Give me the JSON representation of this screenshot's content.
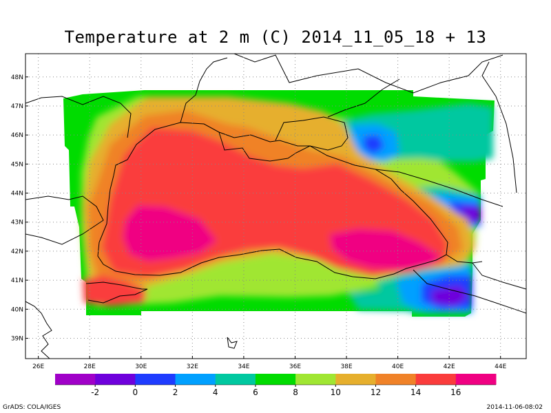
{
  "title": "Temperature at 2 m (C) 2014_11_05_18 + 13",
  "credit": "GrADS: COLA/IGES",
  "timestamp": "2014-11-06-08:02",
  "map": {
    "lon_range": [
      25.5,
      45.0
    ],
    "lat_range": [
      38.3,
      48.8
    ],
    "lon_ticks": [
      26,
      28,
      30,
      32,
      34,
      36,
      38,
      40,
      42,
      44
    ],
    "lon_tick_labels": [
      "26E",
      "28E",
      "30E",
      "32E",
      "34E",
      "36E",
      "38E",
      "40E",
      "42E",
      "44E"
    ],
    "lat_ticks": [
      39,
      40,
      41,
      42,
      43,
      44,
      45,
      46,
      47,
      48
    ],
    "lat_tick_labels": [
      "39N",
      "40N",
      "41N",
      "42N",
      "43N",
      "44N",
      "45N",
      "46N",
      "47N",
      "48N"
    ],
    "grid": "dotted"
  },
  "colorbar": {
    "colors": [
      "#a000c8",
      "#6e00dc",
      "#1e3cff",
      "#00a0ff",
      "#00c8a0",
      "#00dc00",
      "#a0e632",
      "#e6af2d",
      "#f08228",
      "#fa3c3c",
      "#f00082"
    ],
    "tick_labels": [
      "-2",
      "0",
      "2",
      "4",
      "6",
      "8",
      "10",
      "12",
      "14",
      "16"
    ]
  }
}
